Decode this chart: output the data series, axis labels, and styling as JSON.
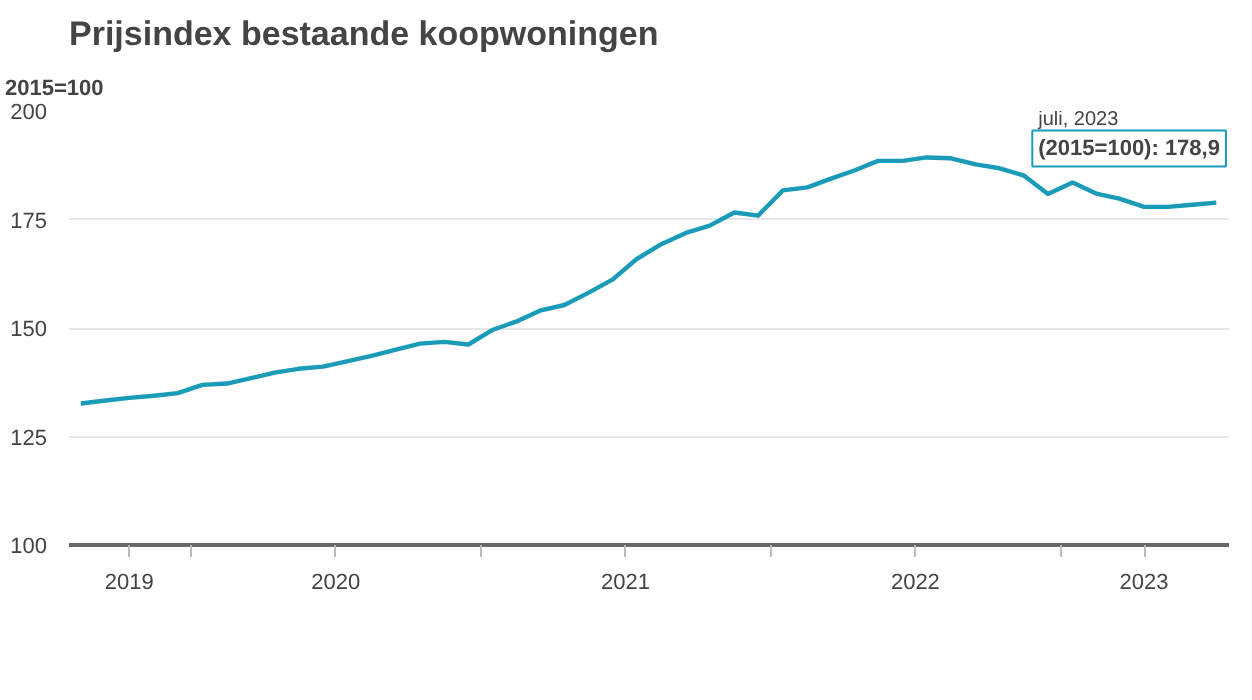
{
  "chart_data": {
    "type": "line",
    "title": "Prijsindex bestaande koopwoningen",
    "ylabel": "2015=100",
    "x": [
      "2019-08-16",
      "2019-09-16",
      "2019-10-16",
      "2019-11-16",
      "2019-12-16",
      "2020-01-16",
      "2020-02-16",
      "2020-03-16",
      "2020-04-16",
      "2020-05-16",
      "2020-06-16",
      "2020-07-16",
      "2020-08-16",
      "2020-09-16",
      "2020-10-16",
      "2020-11-16",
      "2020-12-16",
      "2021-01-16",
      "2021-02-16",
      "2021-03-16",
      "2021-04-16",
      "2021-05-16",
      "2021-06-16",
      "2021-07-16",
      "2021-08-16",
      "2021-09-16",
      "2021-10-16",
      "2021-11-16",
      "2021-12-16",
      "2022-01-16",
      "2022-02-16",
      "2022-03-16",
      "2022-04-16",
      "2022-05-16",
      "2022-06-16",
      "2022-07-16",
      "2022-08-16",
      "2022-09-16",
      "2022-10-16",
      "2022-11-16",
      "2022-12-16",
      "2023-01-16",
      "2023-02-16",
      "2023-03-16",
      "2023-04-16",
      "2023-05-16",
      "2023-06-16",
      "2023-07-16"
    ],
    "series": [
      {
        "color": "#1a9bb8",
        "values": [
          132.6,
          133.3,
          133.9,
          134.4,
          135.0,
          136.9,
          137.2,
          138.4,
          139.7,
          140.6,
          141.1,
          142.3,
          143.6,
          145.0,
          146.4,
          146.8,
          146.2,
          149.6,
          151.6,
          154.0,
          155.3,
          158.1,
          161.2,
          165.9,
          169.3,
          171.9,
          173.6,
          176.6,
          175.9,
          181.7,
          182.4,
          184.3,
          186.3,
          188.5,
          188.5,
          189.3,
          189.1,
          187.7,
          186.8,
          185.1,
          180.9,
          183.5,
          180.9,
          179.8,
          177.9,
          177.9,
          178.4,
          178.9
        ]
      }
    ],
    "xlim": [
      "2019-08-01",
      "2023-08-01"
    ],
    "xticks": [
      {
        "value": "2019-10-16",
        "label": "2019"
      },
      {
        "value": "2020-01-01",
        "label": null
      },
      {
        "value": "2020-07-02",
        "label": "2020"
      },
      {
        "value": "2021-01-01",
        "label": null
      },
      {
        "value": "2021-07-02",
        "label": "2021"
      },
      {
        "value": "2022-01-01",
        "label": null
      },
      {
        "value": "2022-07-02",
        "label": "2022"
      },
      {
        "value": "2023-01-01",
        "label": null
      },
      {
        "value": "2023-04-16",
        "label": "2023"
      }
    ],
    "ylim": [
      100,
      200
    ],
    "yticks": [
      100,
      125,
      150,
      175,
      200
    ],
    "grid": "y",
    "line_style": "solid",
    "annotations": [
      "juli, 2023",
      {
        "text": "(2015=100): 178,9",
        "x": "2023-07-16",
        "y": 178.9
      }
    ]
  }
}
